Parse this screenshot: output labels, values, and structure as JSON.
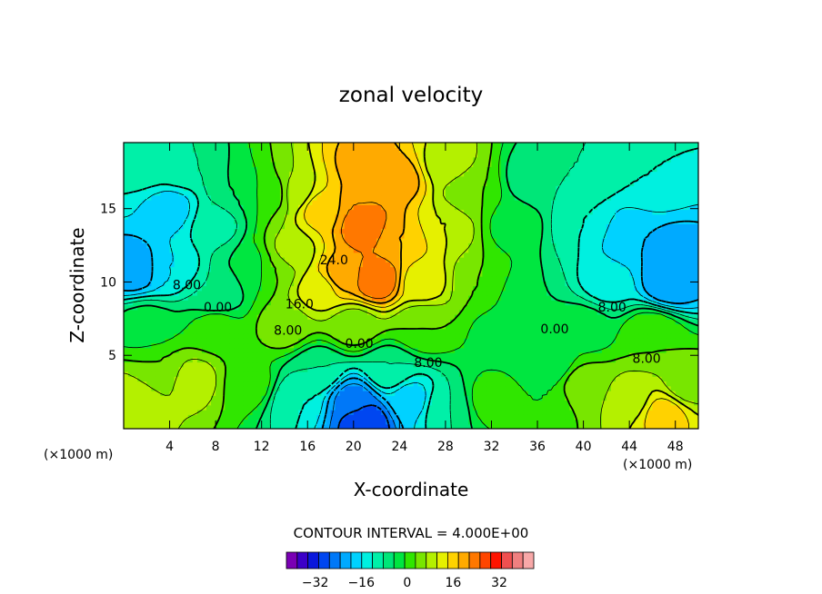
{
  "chart_data": {
    "type": "heatmap",
    "title": "zonal velocity",
    "xlabel": "X-coordinate",
    "ylabel": "Z-coordinate",
    "x_unit_left": "(×1000 m)",
    "x_unit_right": "(×1000 m)",
    "xlim": [
      0,
      50
    ],
    "ylim": [
      0,
      19.5
    ],
    "x_ticks": [
      4,
      8,
      12,
      16,
      20,
      24,
      28,
      32,
      36,
      40,
      44,
      48
    ],
    "y_ticks": [
      5,
      10,
      15
    ],
    "contour_interval_text": "CONTOUR INTERVAL = 4.000E+00",
    "contour_interval": 4,
    "contour_labels": [
      {
        "text": "24.0",
        "x": 18.3,
        "y": 11.2
      },
      {
        "text": "16.0",
        "x": 15.3,
        "y": 8.2
      },
      {
        "text": "8.00",
        "x": 5.5,
        "y": 9.5
      },
      {
        "text": "0.00",
        "x": 8.2,
        "y": 8.0
      },
      {
        "text": "8.00",
        "x": 14.3,
        "y": 6.4
      },
      {
        "text": "0.00",
        "x": 20.5,
        "y": 5.5
      },
      {
        "text": "8.00",
        "x": 26.5,
        "y": 4.2
      },
      {
        "text": "0.00",
        "x": 37.5,
        "y": 6.5
      },
      {
        "text": "8.00",
        "x": 42.5,
        "y": 8.0
      },
      {
        "text": "8.00",
        "x": 45.5,
        "y": 4.5
      }
    ],
    "colorbar": {
      "min": -40,
      "max": 40,
      "step": 4,
      "tick_labels": [
        "-32",
        "-16",
        "0",
        "16",
        "32"
      ],
      "tick_values": [
        -32,
        -16,
        0,
        16,
        32
      ],
      "colors": [
        "#7a00b4",
        "#3c00c8",
        "#0a18dc",
        "#0046f0",
        "#0078f8",
        "#00aaff",
        "#00d2ff",
        "#00f0e0",
        "#00f0a8",
        "#00e678",
        "#00e640",
        "#30e600",
        "#78e600",
        "#b4f000",
        "#e6f000",
        "#ffd200",
        "#ffaa00",
        "#ff7800",
        "#ff4600",
        "#ff1400",
        "#f05050",
        "#f08080",
        "#f8a8a8"
      ]
    },
    "field": [
      {
        "x": 4,
        "y": 15,
        "v": -14
      },
      {
        "x": 1,
        "y": 11,
        "v": -20
      },
      {
        "x": 4,
        "y": 11,
        "v": -12
      },
      {
        "x": 8,
        "y": 14,
        "v": -6
      },
      {
        "x": 10,
        "y": 16,
        "v": 0
      },
      {
        "x": 13,
        "y": 16,
        "v": 6
      },
      {
        "x": 15,
        "y": 16,
        "v": 14
      },
      {
        "x": 17,
        "y": 15,
        "v": 22
      },
      {
        "x": 21,
        "y": 15,
        "v": 28
      },
      {
        "x": 21,
        "y": 18,
        "v": 26
      },
      {
        "x": 24,
        "y": 17,
        "v": 26
      },
      {
        "x": 24,
        "y": 13,
        "v": 24
      },
      {
        "x": 21,
        "y": 13.8,
        "v": 32
      },
      {
        "x": 22,
        "y": 10.2,
        "v": 32
      },
      {
        "x": 19,
        "y": 10.5,
        "v": 26
      },
      {
        "x": 17,
        "y": 9.5,
        "v": 18
      },
      {
        "x": 26,
        "y": 10,
        "v": 18
      },
      {
        "x": 28,
        "y": 14,
        "v": 16
      },
      {
        "x": 28,
        "y": 18,
        "v": 14
      },
      {
        "x": 30,
        "y": 16,
        "v": 8
      },
      {
        "x": 31,
        "y": 10,
        "v": 8
      },
      {
        "x": 34,
        "y": 14,
        "v": 2
      },
      {
        "x": 36,
        "y": 17,
        "v": -4
      },
      {
        "x": 40,
        "y": 14,
        "v": -8
      },
      {
        "x": 44,
        "y": 13,
        "v": -16
      },
      {
        "x": 48,
        "y": 12,
        "v": -18
      },
      {
        "x": 47.5,
        "y": 10,
        "v": -20
      },
      {
        "x": 42,
        "y": 10,
        "v": -10
      },
      {
        "x": 46,
        "y": 17,
        "v": -8
      },
      {
        "x": 40,
        "y": 18,
        "v": -4
      },
      {
        "x": 5,
        "y": 18,
        "v": -4
      },
      {
        "x": 2,
        "y": 18,
        "v": -6
      },
      {
        "x": 2,
        "y": 7,
        "v": 2
      },
      {
        "x": 8,
        "y": 7,
        "v": 6
      },
      {
        "x": 14,
        "y": 7,
        "v": 10
      },
      {
        "x": 20,
        "y": 7,
        "v": 10
      },
      {
        "x": 26,
        "y": 7,
        "v": 8
      },
      {
        "x": 33,
        "y": 6.5,
        "v": 2
      },
      {
        "x": 40,
        "y": 7,
        "v": 2
      },
      {
        "x": 46,
        "y": 6.5,
        "v": 8
      },
      {
        "x": 6,
        "y": 3.3,
        "v": 14
      },
      {
        "x": 1,
        "y": 2,
        "v": 16
      },
      {
        "x": 3,
        "y": 4,
        "v": 8
      },
      {
        "x": 11,
        "y": 3,
        "v": 6
      },
      {
        "x": 15,
        "y": 2,
        "v": -8
      },
      {
        "x": 20,
        "y": 2,
        "v": -22
      },
      {
        "x": 21,
        "y": 0.5,
        "v": -28
      },
      {
        "x": 25,
        "y": 2,
        "v": -14
      },
      {
        "x": 28,
        "y": 1.5,
        "v": -4
      },
      {
        "x": 17,
        "y": 4,
        "v": -4
      },
      {
        "x": 23,
        "y": 4,
        "v": -4
      },
      {
        "x": 32,
        "y": 2,
        "v": 6
      },
      {
        "x": 36,
        "y": 2,
        "v": 4
      },
      {
        "x": 40,
        "y": 3,
        "v": 10
      },
      {
        "x": 44,
        "y": 2,
        "v": 14
      },
      {
        "x": 47,
        "y": 1,
        "v": 22
      },
      {
        "x": 49,
        "y": 3,
        "v": 10
      },
      {
        "x": 37,
        "y": 4.5,
        "v": 0
      },
      {
        "x": 11,
        "y": 11,
        "v": 0
      },
      {
        "x": 13,
        "y": 11,
        "v": 8
      },
      {
        "x": 14.5,
        "y": 12,
        "v": 14
      },
      {
        "x": 35,
        "y": 9,
        "v": 0
      },
      {
        "x": 8,
        "y": 9,
        "v": -4
      }
    ]
  }
}
